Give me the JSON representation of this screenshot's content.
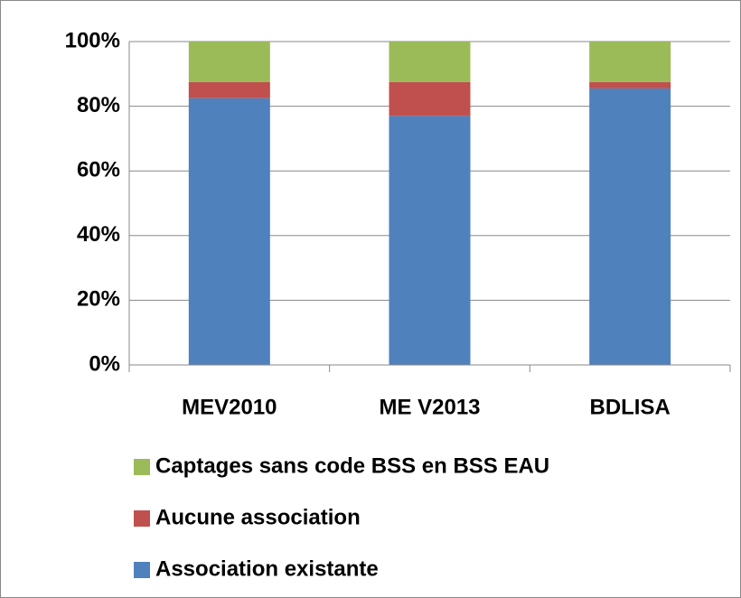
{
  "chart_data": {
    "type": "stacked_bar",
    "categories": [
      "MEV2010",
      "ME V2013",
      "BDLISA"
    ],
    "series": [
      {
        "name": "Association existante",
        "color": "#4f81bd",
        "values": [
          82.5,
          77,
          85.5
        ]
      },
      {
        "name": "Aucune association",
        "color": "#c0504d",
        "values": [
          5,
          10.5,
          2
        ]
      },
      {
        "name": "Captages sans code BSS en BSS EAU",
        "color": "#9bbb59",
        "values": [
          12.5,
          12.5,
          12.5
        ]
      }
    ],
    "ylim": [
      0,
      100
    ],
    "yticks": [
      {
        "value": 0,
        "label": "0%"
      },
      {
        "value": 20,
        "label": "20%"
      },
      {
        "value": 40,
        "label": "40%"
      },
      {
        "value": 60,
        "label": "60%"
      },
      {
        "value": 80,
        "label": "80%"
      },
      {
        "value": 100,
        "label": "100%"
      }
    ],
    "grid": true
  }
}
